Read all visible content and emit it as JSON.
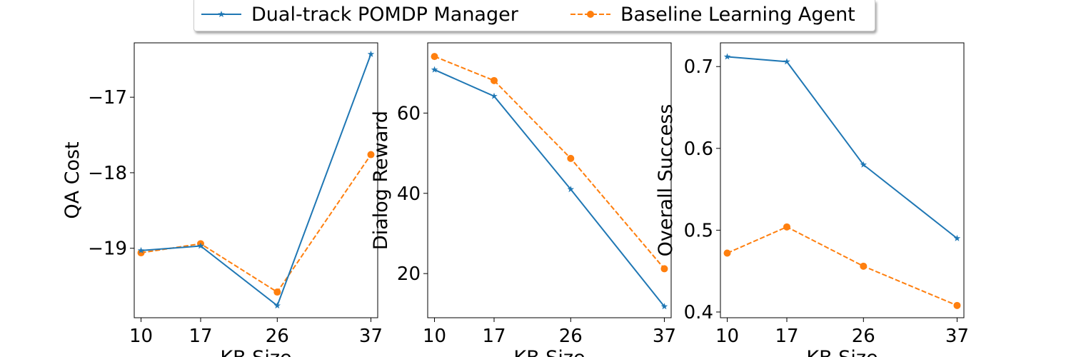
{
  "legend": {
    "series_a": "Dual-track POMDP Manager",
    "series_b": "Baseline Learning Agent"
  },
  "colors": {
    "series_a": "#1f77b4",
    "series_b": "#ff7f0e"
  },
  "chart_data": [
    {
      "type": "line",
      "xlabel": "KB Size",
      "ylabel": "QA Cost",
      "x": [
        10,
        17,
        26,
        37
      ],
      "x_ticks": [
        "10",
        "17",
        "26",
        "37"
      ],
      "y_ticks": [
        -19,
        -18,
        -17
      ],
      "y_tick_labels": [
        "−19",
        "−18",
        "−17"
      ],
      "xlim": [
        9.2,
        37.8
      ],
      "ylim": [
        -19.92,
        -16.28
      ],
      "series": [
        {
          "name": "Dual-track POMDP Manager",
          "values": [
            -19.03,
            -18.97,
            -19.76,
            -16.43
          ],
          "marker": "star",
          "line": "solid"
        },
        {
          "name": "Baseline Learning Agent",
          "values": [
            -19.06,
            -18.94,
            -19.58,
            -17.76
          ],
          "marker": "circle",
          "line": "dashed"
        }
      ]
    },
    {
      "type": "line",
      "xlabel": "KB Size",
      "ylabel": "Dialog Reward",
      "x": [
        10,
        17,
        26,
        37
      ],
      "x_ticks": [
        "10",
        "17",
        "26",
        "37"
      ],
      "y_ticks": [
        20,
        40,
        60
      ],
      "y_tick_labels": [
        "20",
        "40",
        "60"
      ],
      "xlim": [
        9.2,
        37.8
      ],
      "ylim": [
        9,
        77.5
      ],
      "series": [
        {
          "name": "Dual-track POMDP Manager",
          "values": [
            70.8,
            64.2,
            41.0,
            11.8
          ],
          "marker": "star",
          "line": "solid"
        },
        {
          "name": "Baseline Learning Agent",
          "values": [
            74.1,
            68.1,
            48.7,
            21.2
          ],
          "marker": "circle",
          "line": "dashed"
        }
      ]
    },
    {
      "type": "line",
      "xlabel": "KB Size",
      "ylabel": "Overall Success",
      "x": [
        10,
        17,
        26,
        37
      ],
      "x_ticks": [
        "10",
        "17",
        "26",
        "37"
      ],
      "y_ticks": [
        0.4,
        0.5,
        0.6,
        0.7
      ],
      "y_tick_labels": [
        "0.4",
        "0.5",
        "0.6",
        "0.7"
      ],
      "xlim": [
        9.2,
        37.8
      ],
      "ylim": [
        0.393,
        0.729
      ],
      "series": [
        {
          "name": "Dual-track POMDP Manager",
          "values": [
            0.712,
            0.706,
            0.58,
            0.49
          ],
          "marker": "star",
          "line": "solid"
        },
        {
          "name": "Baseline Learning Agent",
          "values": [
            0.472,
            0.504,
            0.456,
            0.408
          ],
          "marker": "circle",
          "line": "dashed"
        }
      ]
    }
  ]
}
